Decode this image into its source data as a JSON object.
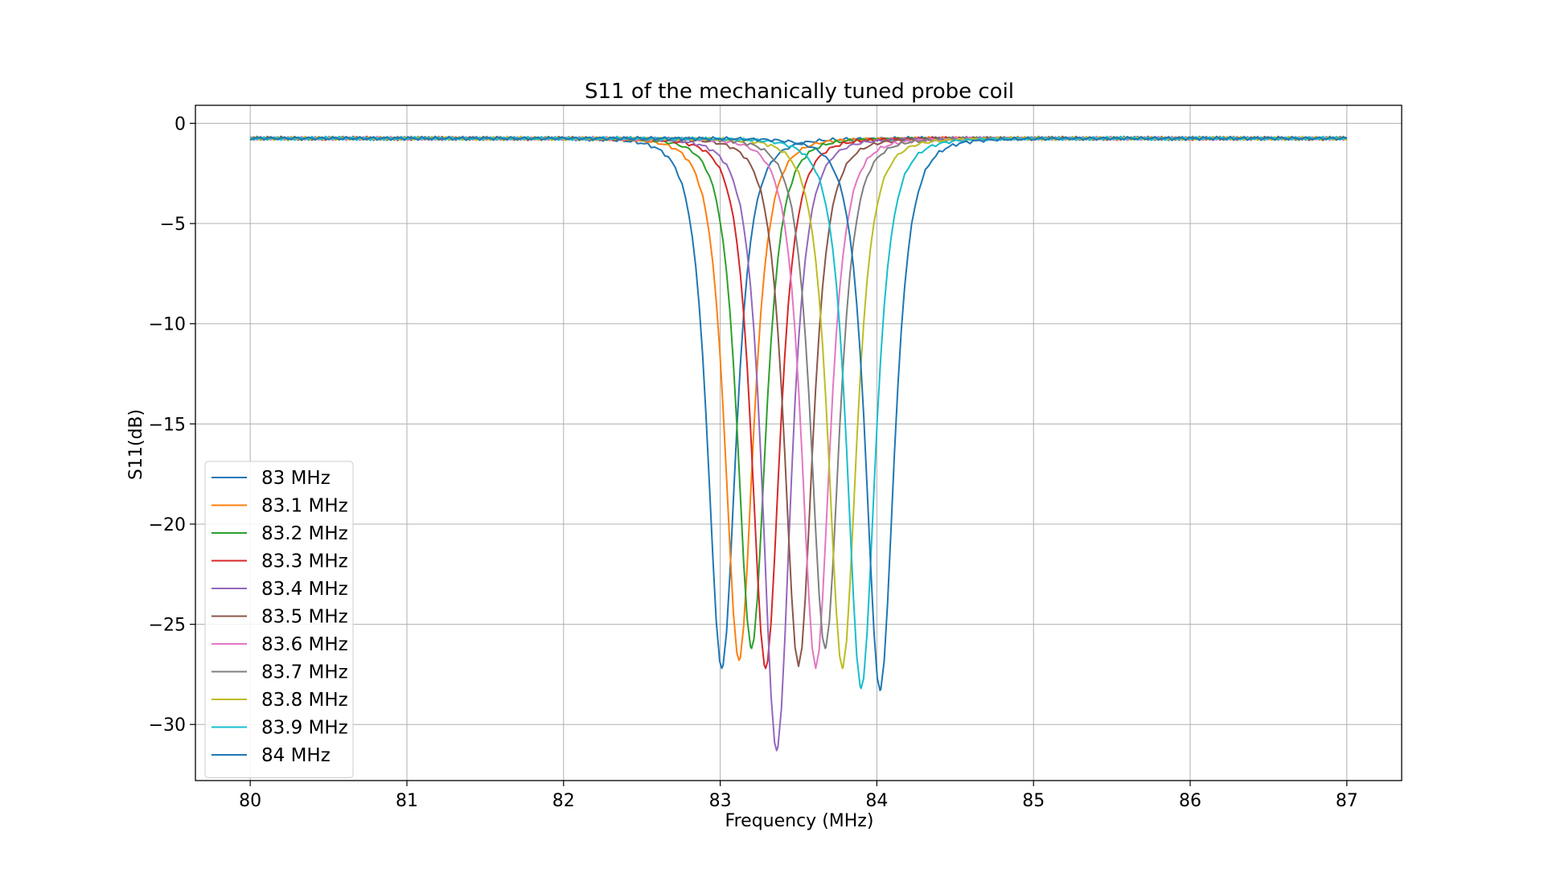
{
  "chart_data": {
    "type": "line",
    "title": "S11 of the mechanically tuned probe coil",
    "xlabel": "Frequency (MHz)",
    "ylabel": "S11(dB)",
    "xlim": [
      79.65,
      87.35
    ],
    "ylim": [
      -32.8,
      0.9
    ],
    "xticks": [
      80,
      81,
      82,
      83,
      84,
      85,
      86,
      87
    ],
    "yticks": [
      0,
      -5,
      -10,
      -15,
      -20,
      -25,
      -30
    ],
    "ytick_labels": [
      "0",
      "−5",
      "−10",
      "−15",
      "−20",
      "−25",
      "−30"
    ],
    "grid": true,
    "legend_position": "lower-left",
    "baseline_db": -0.75,
    "series": [
      {
        "name": "83 MHz",
        "color": "#1f77b4",
        "f0": 83.01,
        "min_db": -27.2,
        "gamma": 0.36
      },
      {
        "name": "83.1 MHz",
        "color": "#ff7f0e",
        "f0": 83.12,
        "min_db": -26.8,
        "gamma": 0.36
      },
      {
        "name": "83.2 MHz",
        "color": "#2ca02c",
        "f0": 83.2,
        "min_db": -26.2,
        "gamma": 0.36
      },
      {
        "name": "83.3 MHz",
        "color": "#d62728",
        "f0": 83.29,
        "min_db": -27.2,
        "gamma": 0.36
      },
      {
        "name": "83.4 MHz",
        "color": "#9467bd",
        "f0": 83.36,
        "min_db": -31.3,
        "gamma": 0.36
      },
      {
        "name": "83.5 MHz",
        "color": "#8c564b",
        "f0": 83.5,
        "min_db": -27.1,
        "gamma": 0.36
      },
      {
        "name": "83.6 MHz",
        "color": "#e377c2",
        "f0": 83.61,
        "min_db": -27.2,
        "gamma": 0.36
      },
      {
        "name": "83.7 MHz",
        "color": "#7f7f7f",
        "f0": 83.67,
        "min_db": -26.2,
        "gamma": 0.36
      },
      {
        "name": "83.8 MHz",
        "color": "#bcbd22",
        "f0": 83.78,
        "min_db": -27.2,
        "gamma": 0.36
      },
      {
        "name": "83.9 MHz",
        "color": "#17becf",
        "f0": 83.9,
        "min_db": -28.2,
        "gamma": 0.36
      },
      {
        "name": "84 MHz",
        "color": "#1f77b4",
        "f0": 84.02,
        "min_db": -28.3,
        "gamma": 0.36
      }
    ]
  }
}
